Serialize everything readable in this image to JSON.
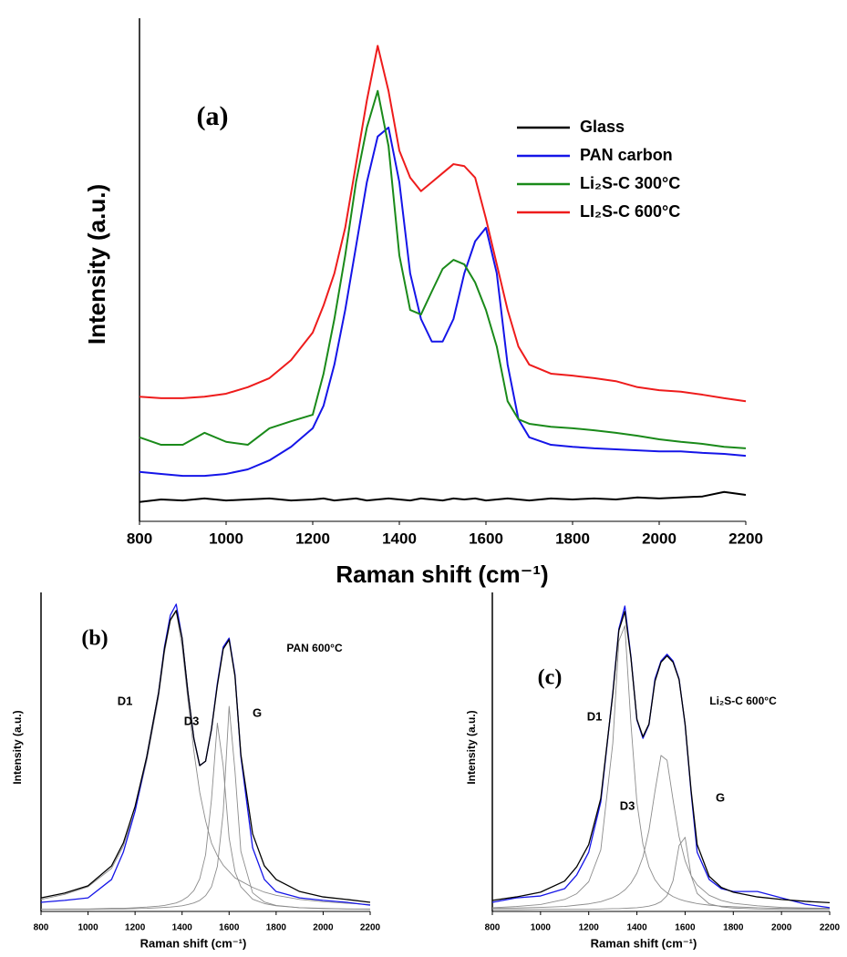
{
  "chart_data": [
    {
      "type": "line",
      "annotations": [
        "(a)"
      ],
      "x_label": "Raman shift (cm⁻¹)",
      "y_label": "Intensity (a.u.)",
      "x": [
        800,
        850,
        900,
        950,
        1000,
        1050,
        1100,
        1150,
        1200,
        1225,
        1250,
        1275,
        1300,
        1325,
        1350,
        1375,
        1400,
        1425,
        1450,
        1475,
        1500,
        1525,
        1550,
        1575,
        1600,
        1625,
        1650,
        1675,
        1700,
        1750,
        1800,
        1850,
        1900,
        1950,
        2000,
        2050,
        2100,
        2150,
        2200
      ],
      "xlim": [
        800,
        2200
      ],
      "xticks": [
        800,
        1000,
        1200,
        1400,
        1600,
        1800,
        2000,
        2200
      ],
      "ylim": [
        0,
        100
      ],
      "legend": "upper right",
      "series": [
        {
          "name": "Glass",
          "color": "#000000",
          "values": [
            3.5,
            4.0,
            3.8,
            4.2,
            3.8,
            4.0,
            4.2,
            3.8,
            4.0,
            4.2,
            3.8,
            4.0,
            4.2,
            3.8,
            4.0,
            4.2,
            4.0,
            3.8,
            4.2,
            4.0,
            3.8,
            4.2,
            4.0,
            4.2,
            3.8,
            4.0,
            4.2,
            4.0,
            3.8,
            4.2,
            4.0,
            4.2,
            4.0,
            4.4,
            4.2,
            4.4,
            4.6,
            5.5,
            4.9
          ]
        },
        {
          "name": "PAN carbon",
          "color": "#1515e8",
          "values": [
            9.5,
            9.1,
            8.7,
            8.7,
            9.1,
            10.0,
            11.8,
            14.5,
            18.2,
            22.7,
            30.9,
            41.8,
            54.5,
            67.3,
            76.4,
            78.2,
            67.3,
            49.1,
            40.0,
            35.5,
            35.5,
            40.0,
            49.1,
            55.5,
            58.2,
            49.1,
            30.9,
            20.0,
            16.4,
            14.9,
            14.5,
            14.2,
            14.0,
            13.8,
            13.6,
            13.6,
            13.3,
            13.1,
            12.7
          ]
        },
        {
          "name": "Li₂S-C 300°C",
          "color": "#1a8a1a",
          "values": [
            16.4,
            14.9,
            14.9,
            17.3,
            15.5,
            14.9,
            18.2,
            19.6,
            20.9,
            29.1,
            40.0,
            52.7,
            67.3,
            78.2,
            85.5,
            74.5,
            52.7,
            41.8,
            40.9,
            45.5,
            50.0,
            51.8,
            50.9,
            47.3,
            41.8,
            34.5,
            23.6,
            20.0,
            19.1,
            18.5,
            18.2,
            17.8,
            17.3,
            16.7,
            16.0,
            15.5,
            15.1,
            14.5,
            14.2
          ]
        },
        {
          "name": "LI₂S-C 600°C",
          "color": "#ee1c1c",
          "values": [
            24.5,
            24.2,
            24.2,
            24.5,
            25.1,
            26.4,
            28.2,
            31.8,
            37.3,
            42.7,
            49.1,
            58.2,
            70.9,
            83.6,
            94.5,
            85.5,
            73.6,
            68.2,
            65.5,
            67.3,
            69.1,
            70.9,
            70.5,
            68.2,
            60.0,
            50.9,
            41.8,
            34.5,
            30.9,
            29.1,
            28.7,
            28.2,
            27.6,
            26.4,
            25.8,
            25.5,
            24.9,
            24.2,
            23.6
          ]
        }
      ]
    },
    {
      "type": "line",
      "annotations": [
        "(b)",
        "PAN 600°C"
      ],
      "x_label": "Raman shift (cm⁻¹)",
      "y_label": "Intensity (a.u.)",
      "x": [
        800,
        900,
        1000,
        1100,
        1150,
        1200,
        1250,
        1300,
        1325,
        1350,
        1375,
        1400,
        1425,
        1450,
        1475,
        1500,
        1525,
        1550,
        1575,
        1600,
        1625,
        1650,
        1700,
        1750,
        1800,
        1900,
        2000,
        2100,
        2200
      ],
      "xlim": [
        800,
        2200
      ],
      "xticks": [
        800,
        1000,
        1200,
        1400,
        1600,
        1800,
        2000,
        2200
      ],
      "ylim": [
        0,
        100
      ],
      "series": [
        {
          "color": "#1515e8",
          "values": [
            2.3,
            2.9,
            3.7,
            9.5,
            18.1,
            31.0,
            48.3,
            68.4,
            82.8,
            92.8,
            96.3,
            85.6,
            68.4,
            54.0,
            45.4,
            46.8,
            56.9,
            71.3,
            82.8,
            85.6,
            74.1,
            48.3,
            19.5,
            9.5,
            5.7,
            3.7,
            2.9,
            2.3,
            1.4
          ]
        },
        {
          "color": "#000000",
          "values": [
            3.7,
            5.2,
            7.5,
            13.8,
            21.0,
            32.5,
            48.3,
            68.4,
            82.2,
            91.4,
            94.3,
            85.6,
            68.4,
            54.0,
            45.4,
            46.8,
            56.9,
            70.7,
            82.2,
            85.1,
            73.6,
            48.9,
            23.9,
            13.8,
            9.5,
            5.7,
            4.0,
            3.2,
            2.3
          ]
        },
        {
          "name": "D1",
          "color": "#8c8c8c",
          "values": [
            3.2,
            4.8,
            7.2,
            13,
            20,
            31,
            47,
            67,
            81,
            91,
            94,
            83,
            66,
            50,
            37,
            28,
            21,
            17,
            14,
            12,
            10,
            9,
            7,
            5.5,
            4.5,
            3.2,
            2.5,
            2,
            1.6
          ]
        },
        {
          "name": "D3",
          "color": "#8c8c8c",
          "values": [
            0.1,
            0.2,
            0.2,
            0.4,
            0.4,
            0.6,
            0.8,
            1.1,
            1.3,
            1.7,
            2.1,
            2.9,
            4.1,
            6.0,
            9.7,
            17.3,
            34.7,
            58.8,
            45.2,
            22.6,
            12.0,
            7.2,
            3.3,
            1.9,
            1.2,
            0.6,
            0.4,
            0.2,
            0.2
          ]
        },
        {
          "name": "G",
          "color": "#8c8c8c",
          "values": [
            0.1,
            0.1,
            0.1,
            0.2,
            0.2,
            0.3,
            0.4,
            0.6,
            0.7,
            0.8,
            1.0,
            1.2,
            1.6,
            2.1,
            2.9,
            4.4,
            7.2,
            13.6,
            30.7,
            64.1,
            43.7,
            18.4,
            5.3,
            2.4,
            1.3,
            0.6,
            0.3,
            0.2,
            0.1
          ]
        }
      ]
    },
    {
      "type": "line",
      "annotations": [
        "(c)",
        "Li₂S-C 600°C"
      ],
      "x_label": "Raman shift (cm⁻¹)",
      "y_label": "Intensity (a.u.)",
      "x": [
        800,
        900,
        1000,
        1100,
        1150,
        1200,
        1250,
        1300,
        1325,
        1350,
        1375,
        1400,
        1425,
        1450,
        1475,
        1500,
        1525,
        1550,
        1575,
        1600,
        1625,
        1650,
        1700,
        1750,
        1800,
        1900,
        2000,
        2100,
        2200
      ],
      "xlim": [
        800,
        2200
      ],
      "xticks": [
        800,
        1000,
        1200,
        1400,
        1600,
        1800,
        2000,
        2200
      ],
      "ylim": [
        0,
        100
      ],
      "series": [
        {
          "color": "#1515e8",
          "values": [
            2.3,
            3.7,
            4.3,
            6.6,
            10.9,
            18.1,
            33.9,
            68.4,
            88.5,
            95.7,
            79.9,
            59.8,
            54.0,
            58.3,
            72.7,
            78.4,
            80.5,
            78.4,
            72.7,
            58.3,
            36.8,
            18.1,
            9.5,
            6.6,
            5.7,
            5.7,
            3.7,
            1.7,
            0.6
          ]
        },
        {
          "color": "#000000",
          "values": [
            2.9,
            4.0,
            5.5,
            9.0,
            13.5,
            20.5,
            35.0,
            68.0,
            88.0,
            94.0,
            79.5,
            60.0,
            54.5,
            58.5,
            72.0,
            78.0,
            80.0,
            78.0,
            72.5,
            58.5,
            37.5,
            20.5,
            10.5,
            7.0,
            5.5,
            4.0,
            3.2,
            2.6,
            2.2
          ]
        },
        {
          "name": "D1",
          "color": "#8c8c8c",
          "values": [
            0.6,
            1.0,
            1.6,
            3.2,
            5.0,
            8.8,
            18.8,
            52.5,
            84.7,
            89.5,
            58.8,
            33.8,
            20.6,
            13.5,
            9.4,
            6.9,
            5.3,
            4.1,
            3.3,
            2.7,
            2.3,
            1.9,
            1.4,
            1.1,
            0.9,
            0.6,
            0.4,
            0.3,
            0.3
          ]
        },
        {
          "name": "D3",
          "color": "#8c8c8c",
          "values": [
            0.4,
            0.5,
            0.7,
            1.0,
            1.4,
            1.8,
            2.5,
            3.8,
            4.8,
            6.2,
            8.3,
            11.5,
            16.6,
            25.0,
            37.3,
            48.6,
            47.1,
            34.6,
            23.0,
            15.4,
            10.7,
            7.8,
            4.5,
            2.9,
            2.0,
            1.2,
            0.7,
            0.5,
            0.4
          ]
        },
        {
          "name": "G",
          "color": "#8c8c8c",
          "values": [
            0.0,
            0.0,
            0.1,
            0.1,
            0.1,
            0.1,
            0.2,
            0.3,
            0.3,
            0.4,
            0.5,
            0.6,
            0.8,
            1.1,
            1.6,
            2.5,
            4.4,
            9.1,
            20.2,
            22.8,
            10.7,
            5.1,
            1.8,
            0.9,
            0.5,
            0.2,
            0.1,
            0.1,
            0.1
          ]
        }
      ]
    }
  ]
}
